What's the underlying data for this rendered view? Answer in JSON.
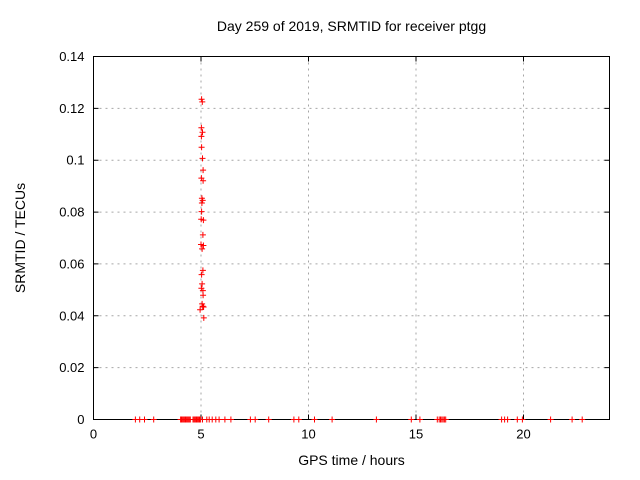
{
  "chart_data": {
    "type": "scatter",
    "title": "Day 259 of 2019, SRMTID for receiver ptgg",
    "xlabel": "GPS time / hours",
    "ylabel": "SRMTID / TECUs",
    "xlim": [
      0,
      24
    ],
    "ylim": [
      0,
      0.14
    ],
    "xticks": [
      {
        "value": 0,
        "label": "0"
      },
      {
        "value": 5,
        "label": "5"
      },
      {
        "value": 10,
        "label": "10"
      },
      {
        "value": 15,
        "label": "15"
      },
      {
        "value": 20,
        "label": "20"
      }
    ],
    "yticks": [
      {
        "value": 0,
        "label": "0"
      },
      {
        "value": 0.02,
        "label": "0.02"
      },
      {
        "value": 0.04,
        "label": "0.04"
      },
      {
        "value": 0.06,
        "label": "0.06"
      },
      {
        "value": 0.08,
        "label": "0.08"
      },
      {
        "value": 0.1,
        "label": "0.1"
      },
      {
        "value": 0.12,
        "label": "0.12"
      },
      {
        "value": 0.14,
        "label": "0.14"
      }
    ],
    "grid": true,
    "grid_color": "#a6a6a6",
    "border_color": "#000000",
    "legend": false,
    "marker": "plus",
    "marker_color": "#ff0000",
    "series": [
      {
        "name": "srmtid-points",
        "color": "#ff0000",
        "points": [
          [
            5.03,
            0.1235
          ],
          [
            5.06,
            0.1225
          ],
          [
            5.02,
            0.1125
          ],
          [
            5.07,
            0.1108
          ],
          [
            5.02,
            0.1092
          ],
          [
            5.03,
            0.105
          ],
          [
            5.07,
            0.1007
          ],
          [
            5.1,
            0.0962
          ],
          [
            5.02,
            0.0931
          ],
          [
            5.1,
            0.0921
          ],
          [
            5.04,
            0.0853
          ],
          [
            5.08,
            0.0845
          ],
          [
            5.04,
            0.0835
          ],
          [
            5.03,
            0.0802
          ],
          [
            5.01,
            0.0772
          ],
          [
            5.11,
            0.0769
          ],
          [
            5.09,
            0.0712
          ],
          [
            5.0,
            0.0675
          ],
          [
            5.11,
            0.0671
          ],
          [
            5.05,
            0.0658
          ],
          [
            5.09,
            0.0575
          ],
          [
            5.03,
            0.0559
          ],
          [
            5.05,
            0.0523
          ],
          [
            5.02,
            0.0506
          ],
          [
            5.09,
            0.0497
          ],
          [
            5.1,
            0.0479
          ],
          [
            5.05,
            0.0446
          ],
          [
            5.08,
            0.0437
          ],
          [
            5.12,
            0.0434
          ],
          [
            4.96,
            0.0423
          ],
          [
            5.13,
            0.0392
          ],
          [
            1.95,
            0
          ],
          [
            2.15,
            0
          ],
          [
            2.37,
            0
          ],
          [
            2.8,
            0
          ],
          [
            4.05,
            0
          ],
          [
            4.1,
            0
          ],
          [
            4.15,
            0
          ],
          [
            4.2,
            0
          ],
          [
            4.25,
            0
          ],
          [
            4.3,
            0
          ],
          [
            4.35,
            0
          ],
          [
            4.4,
            0
          ],
          [
            4.45,
            0
          ],
          [
            4.5,
            0
          ],
          [
            4.63,
            0
          ],
          [
            4.68,
            0
          ],
          [
            4.73,
            0
          ],
          [
            4.78,
            0
          ],
          [
            4.83,
            0
          ],
          [
            4.88,
            0
          ],
          [
            4.93,
            0
          ],
          [
            4.98,
            0
          ],
          [
            5.07,
            0
          ],
          [
            5.27,
            0
          ],
          [
            5.38,
            0
          ],
          [
            5.52,
            0
          ],
          [
            5.69,
            0
          ],
          [
            5.84,
            0
          ],
          [
            6.11,
            0
          ],
          [
            6.39,
            0
          ],
          [
            7.3,
            0
          ],
          [
            7.52,
            0
          ],
          [
            8.15,
            0
          ],
          [
            9.32,
            0
          ],
          [
            9.55,
            0
          ],
          [
            10.28,
            0
          ],
          [
            11.1,
            0
          ],
          [
            13.16,
            0
          ],
          [
            14.78,
            0
          ],
          [
            15.18,
            0
          ],
          [
            15.99,
            0
          ],
          [
            16.08,
            0
          ],
          [
            16.14,
            0
          ],
          [
            16.2,
            0
          ],
          [
            16.26,
            0
          ],
          [
            16.32,
            0
          ],
          [
            16.38,
            0
          ],
          [
            18.98,
            0
          ],
          [
            19.12,
            0
          ],
          [
            19.26,
            0
          ],
          [
            19.71,
            0
          ],
          [
            19.95,
            0
          ],
          [
            21.26,
            0
          ],
          [
            22.26,
            0
          ],
          [
            22.73,
            0
          ]
        ]
      }
    ]
  }
}
